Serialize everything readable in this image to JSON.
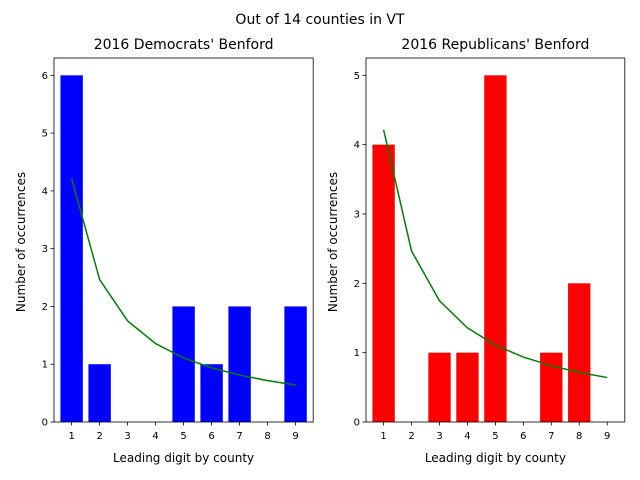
{
  "suptitle": "Out of 14 counties in VT",
  "chart_data": [
    {
      "type": "bar",
      "title": "2016 Democrats' Benford",
      "xlabel": "Leading digit by county",
      "ylabel": "Number of occurrences",
      "categories": [
        "1",
        "2",
        "3",
        "4",
        "5",
        "6",
        "7",
        "8",
        "9"
      ],
      "values": [
        6,
        1,
        0,
        0,
        2,
        1,
        2,
        0,
        2
      ],
      "bar_color": "#0000ff",
      "expected": [
        4.214,
        2.465,
        1.749,
        1.357,
        1.108,
        0.937,
        0.812,
        0.716,
        0.641
      ],
      "expected_color": "#008000",
      "ylim": [
        0,
        6.3
      ],
      "yticks": [
        0,
        1,
        2,
        3,
        4,
        5,
        6
      ],
      "grid": false
    },
    {
      "type": "bar",
      "title": "2016 Republicans' Benford",
      "xlabel": "Leading digit by county",
      "ylabel": "Number of occurrences",
      "categories": [
        "1",
        "2",
        "3",
        "4",
        "5",
        "6",
        "7",
        "8",
        "9"
      ],
      "values": [
        4,
        0,
        1,
        1,
        5,
        0,
        1,
        2,
        0
      ],
      "bar_color": "#ff0000",
      "expected": [
        4.214,
        2.465,
        1.749,
        1.357,
        1.108,
        0.937,
        0.812,
        0.716,
        0.641
      ],
      "expected_color": "#008000",
      "ylim": [
        0,
        5.25
      ],
      "yticks": [
        0,
        1,
        2,
        3,
        4,
        5
      ],
      "grid": false
    }
  ]
}
